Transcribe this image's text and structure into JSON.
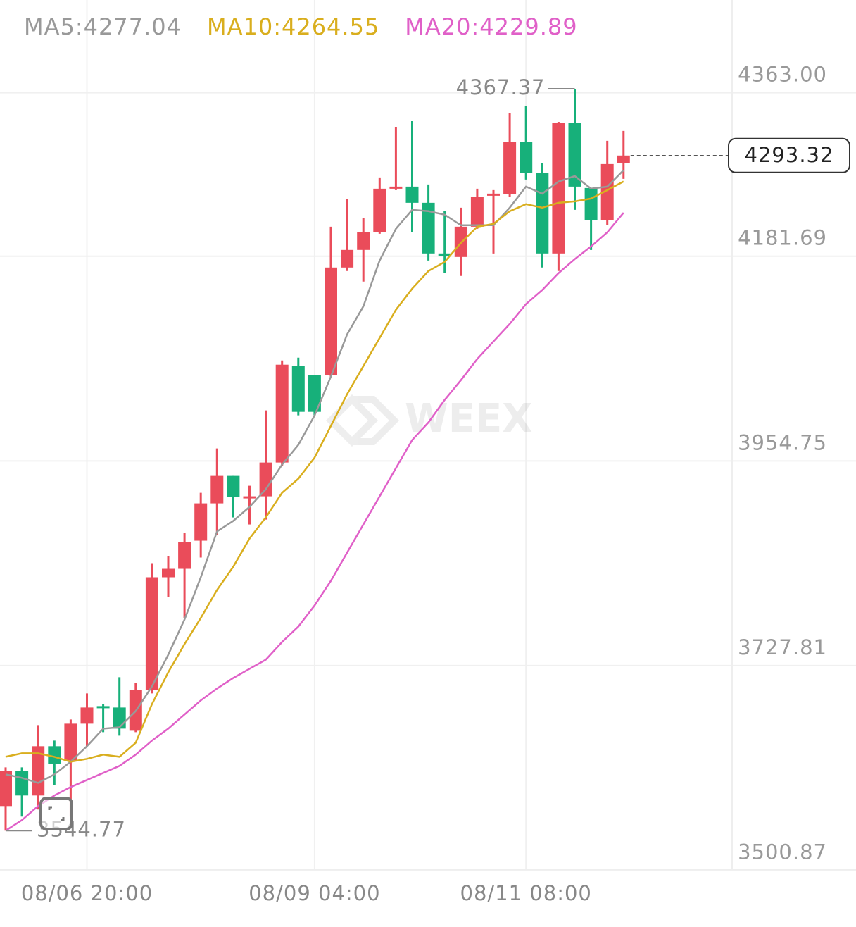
{
  "chart_data": {
    "type": "candlestick",
    "watermark": "WEEX",
    "categories": [
      null,
      null,
      null,
      null,
      null,
      "08/06 20:00",
      null,
      null,
      null,
      null,
      null,
      null,
      null,
      null,
      null,
      null,
      null,
      null,
      null,
      "08/09 04:00",
      null,
      null,
      null,
      null,
      null,
      null,
      null,
      null,
      null,
      null,
      null,
      null,
      "08/11 08:00",
      null,
      null,
      null,
      null,
      null,
      null
    ],
    "open": [
      3572.09,
      3611.11,
      3583.79,
      3638.43,
      3622.82,
      3663.4,
      3682.91,
      3681.35,
      3655.6,
      3700.86,
      3825.74,
      3835.1,
      3866.32,
      3907.68,
      3938.12,
      3913.93,
      3915.49,
      3952.95,
      4059.87,
      4049.73,
      4049.73,
      4169.14,
      4188.65,
      4208.16,
      4256.55,
      4258.89,
      4240.94,
      4184.75,
      4180.84,
      4214.4,
      4248.74,
      4250.31,
      4308.06,
      4273.72,
      4184.75,
      4329.13,
      4257.33,
      4221.43,
      4284.65
    ],
    "high": [
      3615.01,
      3615.01,
      3661.84,
      3644.67,
      3668.08,
      3696.96,
      3685.25,
      3714.91,
      3708.67,
      3841.34,
      3849.15,
      3874.9,
      3919.39,
      3968.56,
      3938.12,
      3927.2,
      4010.7,
      4066.12,
      4069.24,
      4049.73,
      4214.4,
      4244.84,
      4223.77,
      4269.04,
      4325.23,
      4331.47,
      4261.23,
      4231.57,
      4235.48,
      4256.55,
      4254.99,
      4340.84,
      4348.64,
      4284.65,
      4330.69,
      4367.37,
      4257.33,
      4309.62,
      4320.55
    ],
    "low": [
      3544.77,
      3560.38,
      3568.18,
      3595.5,
      3560.38,
      3638.43,
      3654.03,
      3650.13,
      3654.03,
      3696.96,
      3803.88,
      3780.47,
      3847.59,
      3872.56,
      3892.07,
      3884.27,
      3889.73,
      3949.05,
      4005.24,
      4005.24,
      4048.17,
      4165.24,
      4153.53,
      4206.6,
      4254.99,
      4208.16,
      4176.94,
      4162.89,
      4159.77,
      4212.06,
      4184.75,
      4247.18,
      4266.7,
      4169.14,
      4165.24,
      4233.14,
      4188.65,
      4215.97,
      4267.48
    ],
    "close": [
      3611.11,
      3583.79,
      3638.43,
      3618.91,
      3663.4,
      3681.35,
      3680.57,
      3657.94,
      3700.86,
      3825.74,
      3835.1,
      3864.76,
      3907.68,
      3938.12,
      3914.71,
      3915.49,
      3952.95,
      4061.43,
      4009.14,
      4009.14,
      4169.14,
      4188.65,
      4208.16,
      4256.55,
      4258.89,
      4240.94,
      4184.75,
      4181.63,
      4214.4,
      4247.18,
      4251.09,
      4308.06,
      4273.72,
      4184.75,
      4329.13,
      4258.89,
      4221.43,
      4283.87,
      4293.32
    ],
    "up_color": "#ea4c5a",
    "down_color": "#17b07a",
    "series": [
      {
        "name": "MA5:4277.04",
        "color": "#999999",
        "values": [
          3607.2,
          3603.3,
          3597.8,
          3607.2,
          3621.3,
          3638.4,
          3657.9,
          3659.5,
          3677.4,
          3704.8,
          3739.9,
          3778.9,
          3825.7,
          3876.5,
          3888.2,
          3903.8,
          3923.3,
          3950.6,
          3972.5,
          4005.2,
          4048.2,
          4095.0,
          4126.2,
          4176.9,
          4212.1,
          4233.1,
          4231.6,
          4227.7,
          4216.0,
          4216.0,
          4216.0,
          4235.5,
          4258.9,
          4251.1,
          4264.4,
          4270.6,
          4256.6,
          4258.9,
          4277.04
        ]
      },
      {
        "name": "MA10:4264.55",
        "color": "#d9ae1e",
        "values": [
          3626.7,
          3630.6,
          3630.6,
          3626.7,
          3621.3,
          3624.4,
          3629.1,
          3626.7,
          3642.3,
          3685.2,
          3720.4,
          3751.6,
          3780.5,
          3811.7,
          3837.5,
          3868.7,
          3892.1,
          3919.4,
          3935.0,
          3958.4,
          3993.5,
          4028.7,
          4059.9,
          4091.1,
          4122.3,
          4145.7,
          4165.2,
          4175.4,
          4196.5,
          4214.4,
          4217.5,
          4231.6,
          4239.4,
          4235.5,
          4240.9,
          4242.5,
          4245.6,
          4255.0,
          4264.55
        ]
      },
      {
        "name": "MA20:4229.89",
        "color": "#e060c8",
        "values": [
          3544.8,
          3556.5,
          3572.1,
          3583.8,
          3593.2,
          3601.0,
          3608.8,
          3616.6,
          3629.1,
          3644.7,
          3657.9,
          3673.6,
          3689.2,
          3702.4,
          3714.1,
          3724.3,
          3734.4,
          3754.0,
          3771.1,
          3794.5,
          3821.8,
          3853.1,
          3884.3,
          3915.5,
          3946.7,
          3977.9,
          3997.4,
          4022.4,
          4044.3,
          4067.7,
          4087.2,
          4106.7,
          4128.6,
          4144.2,
          4162.9,
          4178.5,
          4192.5,
          4208.2,
          4229.89
        ]
      }
    ],
    "ylim": [
      3500,
      4418.9
    ],
    "yticks": [
      {
        "value": 4363,
        "label": "4363.00"
      },
      4181.69,
      3954.75,
      3727.81,
      3500.87
    ],
    "grid": true
  }
}
